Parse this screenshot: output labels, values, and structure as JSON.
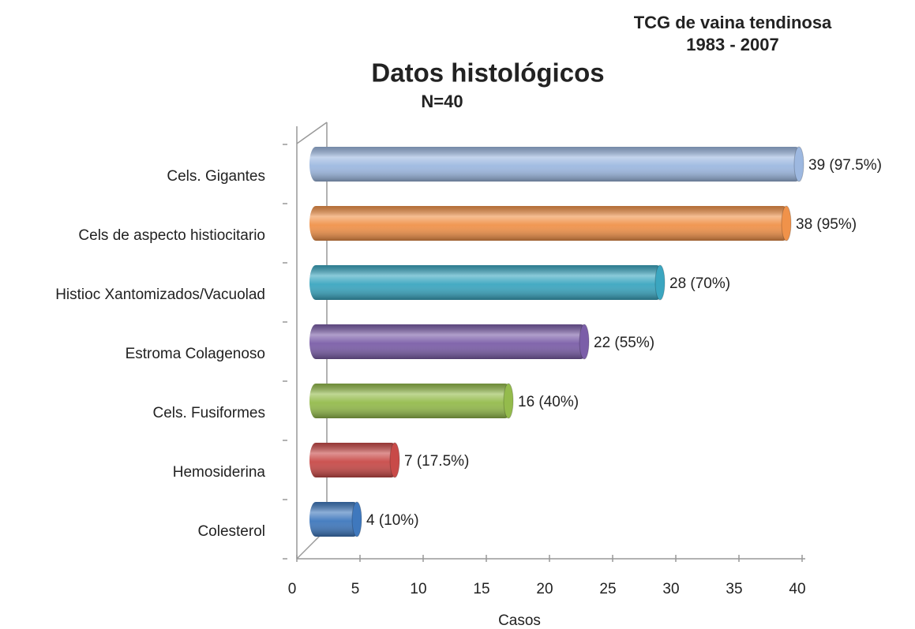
{
  "chart_data": {
    "type": "bar",
    "orientation": "horizontal",
    "title": "Datos histológicos",
    "subtitle": "N=40",
    "annotation": [
      "TCG de vaina tendinosa",
      "1983 - 2007"
    ],
    "x_label": "Casos",
    "categories": [
      "Cels. Gigantes",
      "Cels de aspecto histiocitario",
      "Histioc  Xantomizados/Vacuolad",
      "Estroma Colagenoso",
      "Cels. Fusiformes",
      "Hemosiderina",
      "Colesterol"
    ],
    "values": [
      39,
      38,
      28,
      22,
      16,
      7,
      4
    ],
    "value_labels": [
      "39 (97.5%)",
      "38 (95%)",
      "28 (70%)",
      "22 (55%)",
      "16 (40%)",
      "7 (17.5%)",
      "4 (10%)"
    ],
    "colors": [
      "#9db8e0",
      "#f0924a",
      "#3ba6c0",
      "#7b5ea8",
      "#94bb4c",
      "#c84a48",
      "#3f78bd"
    ],
    "xlim": [
      0,
      40
    ],
    "xticks": [
      0,
      5,
      10,
      15,
      20,
      25,
      30,
      35,
      40
    ]
  }
}
